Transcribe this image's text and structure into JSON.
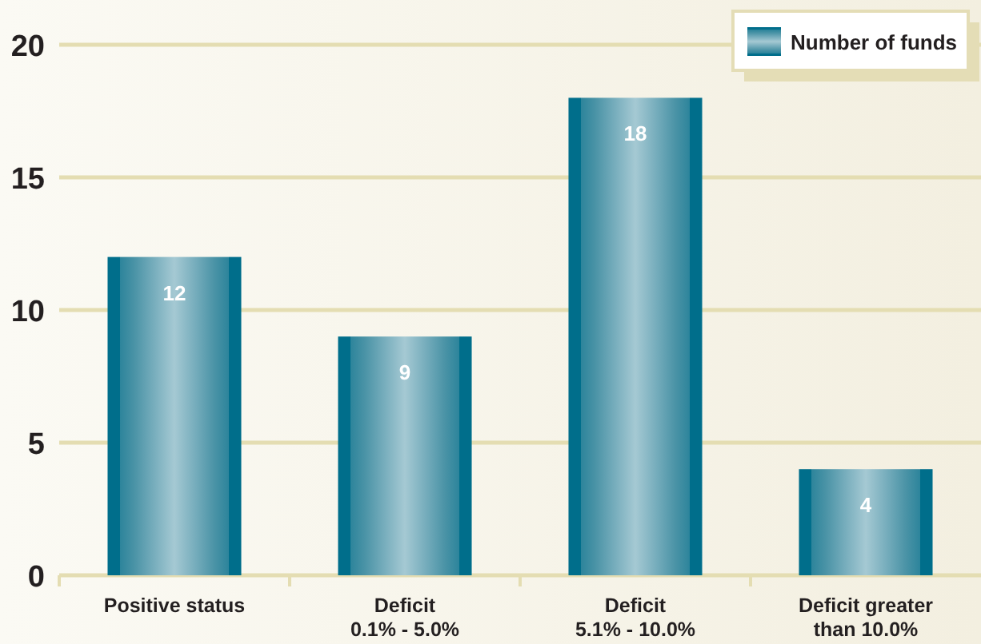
{
  "chart_data": {
    "type": "bar",
    "categories": [
      "Positive status",
      "Deficit\n0.1% - 5.0%",
      "Deficit\n5.1% - 10.0%",
      "Deficit greater\nthan 10.0%"
    ],
    "series": [
      {
        "name": "Number of funds",
        "color": "#4a93a6",
        "values": [
          12,
          9,
          18,
          4
        ]
      }
    ],
    "ylim": [
      0,
      20
    ],
    "yticks": [
      0,
      5,
      10,
      15,
      20
    ],
    "grid": "y",
    "legend": "top right",
    "data_labels": true
  }
}
